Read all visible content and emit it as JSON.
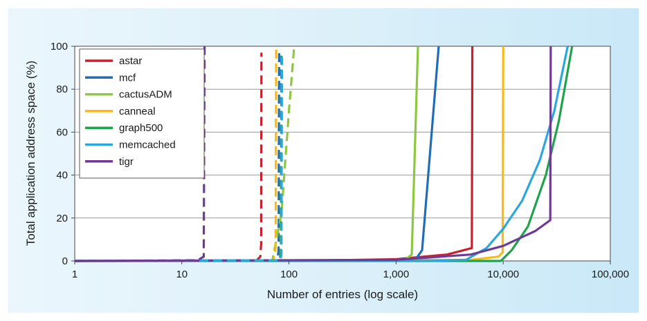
{
  "chart_data": {
    "type": "line",
    "xlabel": "Number of entries (log scale)",
    "ylabel": "Total application address space (%)",
    "xscale": "log",
    "xlim": [
      1,
      100000
    ],
    "ylim": [
      0,
      100
    ],
    "x_ticks": [
      1,
      10,
      100,
      1000,
      10000,
      100000
    ],
    "x_tick_labels": [
      "1",
      "10",
      "100",
      "1,000",
      "10,000",
      "100,000"
    ],
    "y_ticks": [
      0,
      20,
      40,
      60,
      80,
      100
    ],
    "y_tick_labels": [
      "0",
      "20",
      "40",
      "60",
      "80",
      "100"
    ],
    "grid": "horizontal",
    "legend_position": "top-left",
    "line_styles": {
      "dashed": "dashed",
      "solid": "solid"
    },
    "series": [
      {
        "name": "astar",
        "color": "#c8202e",
        "dashed": [
          [
            1,
            0
          ],
          [
            50,
            0.3
          ],
          [
            54,
            2
          ],
          [
            55,
            8
          ],
          [
            55.3,
            97
          ]
        ],
        "solid": [
          [
            1,
            0
          ],
          [
            200,
            0.2
          ],
          [
            1000,
            0.8
          ],
          [
            3000,
            3
          ],
          [
            5100,
            6
          ],
          [
            5150,
            100
          ]
        ]
      },
      {
        "name": "mcf",
        "color": "#1f6db5",
        "dashed": [
          [
            1,
            0
          ],
          [
            78,
            0.3
          ],
          [
            80,
            5
          ],
          [
            81,
            97
          ]
        ],
        "solid": [
          [
            1,
            0
          ],
          [
            1500,
            0.3
          ],
          [
            1750,
            5
          ],
          [
            2500,
            100
          ]
        ]
      },
      {
        "name": "cactusADM",
        "color": "#8dc63f",
        "dashed": [
          [
            1,
            0
          ],
          [
            70,
            0.3
          ],
          [
            85,
            22
          ],
          [
            100,
            70
          ],
          [
            112,
            100
          ]
        ],
        "solid": [
          [
            1,
            0
          ],
          [
            1200,
            0.3
          ],
          [
            1400,
            3
          ],
          [
            1600,
            100
          ]
        ]
      },
      {
        "name": "canneal",
        "color": "#fdb913",
        "dashed": [
          [
            1,
            0
          ],
          [
            72,
            0.3
          ],
          [
            75,
            6
          ],
          [
            76,
            100
          ]
        ],
        "solid": [
          [
            1,
            0
          ],
          [
            5000,
            0.5
          ],
          [
            9000,
            2
          ],
          [
            9900,
            4
          ],
          [
            10000,
            100
          ]
        ]
      },
      {
        "name": "graph500",
        "color": "#1fa34a",
        "dashed": [
          [
            1,
            0
          ],
          [
            82,
            0.3
          ],
          [
            84,
            5
          ],
          [
            85,
            97
          ]
        ],
        "solid": [
          [
            1,
            0
          ],
          [
            6000,
            0
          ],
          [
            9500,
            0
          ],
          [
            12000,
            5
          ],
          [
            17000,
            16
          ],
          [
            25000,
            40
          ],
          [
            33000,
            65
          ],
          [
            44000,
            100
          ]
        ]
      },
      {
        "name": "memcached",
        "color": "#2aa8de",
        "dashed": [
          [
            1,
            0
          ],
          [
            83,
            0.3
          ],
          [
            85,
            3
          ],
          [
            86,
            95
          ]
        ],
        "solid": [
          [
            1,
            0
          ],
          [
            2000,
            0
          ],
          [
            4500,
            0.5
          ],
          [
            7000,
            6
          ],
          [
            10000,
            15
          ],
          [
            15000,
            28
          ],
          [
            22000,
            47
          ],
          [
            30000,
            70
          ],
          [
            40000,
            100
          ]
        ]
      },
      {
        "name": "tigr",
        "color": "#6d3b93",
        "dashed": [
          [
            1,
            0
          ],
          [
            14,
            0.3
          ],
          [
            16,
            2
          ],
          [
            16.3,
            100
          ]
        ],
        "solid": [
          [
            1,
            0
          ],
          [
            1000,
            0.5
          ],
          [
            5000,
            3
          ],
          [
            10000,
            7
          ],
          [
            20000,
            14
          ],
          [
            27500,
            19
          ],
          [
            27800,
            100
          ]
        ]
      }
    ]
  }
}
